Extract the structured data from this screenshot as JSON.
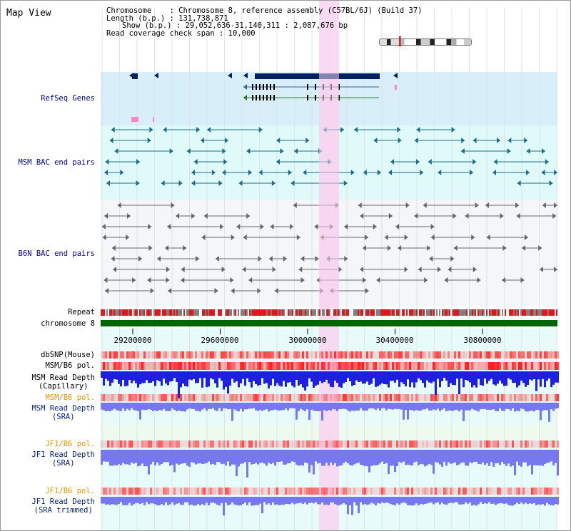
{
  "view_title": "Map View",
  "info": {
    "chromosome": "Chromosome    : Chromosome 8, reference assembly (C57BL/6J) (Build 37)",
    "length": "Length (b.p.) : 131,738,871",
    "show": "Show (b.p.) : 29,052,636-31,140,311 : 2,087,676 bp",
    "coverage": "Read coverage check span : 10,000"
  },
  "tracks": {
    "refseq": "RefSeq Genes",
    "msm_bac": "MSM BAC end pairs",
    "b6n_bac": "B6N BAC end pairs",
    "repeat": "Repeat",
    "chromosome": "chromosome 8",
    "dbsnp": "dbSNP(Mouse)",
    "msm_b6_pol_1": "MSM/B6 pol.",
    "msm_depth_cap_1": "MSM Read Depth",
    "msm_depth_cap_2": "(Capillary)",
    "msm_b6_pol_2": "MSM/B6 pol.",
    "msm_depth_sra_1": "MSM Read Depth",
    "msm_depth_sra_2": "(SRA)",
    "jf1_b6_pol_1": "JF1/B6 pol.",
    "jf1_depth_1": "JF1 Read Depth",
    "jf1_depth_2": "(SRA)",
    "jf1_b6_pol_2": "JF1/B6 pol.",
    "jf1_trim_1": "JF1 Read Depth",
    "jf1_trim_2": "(SRA trimmed)"
  },
  "axis_ticks": [
    "29200000",
    "29600000",
    "30000000",
    "30400000",
    "30800000"
  ],
  "colors": {
    "refseq_bg": "#d8eef8",
    "bac_bg": "#e0fafa",
    "gene": "#002060",
    "msm_bac": "#1a6f8a",
    "b6n_bac": "#666666",
    "chromosome_bar": "#006400",
    "highlight": "#f8d4f0",
    "depth_cap": "#1f1fe0",
    "depth_sra": "#7777f0",
    "pol_red": "#ff2020"
  }
}
